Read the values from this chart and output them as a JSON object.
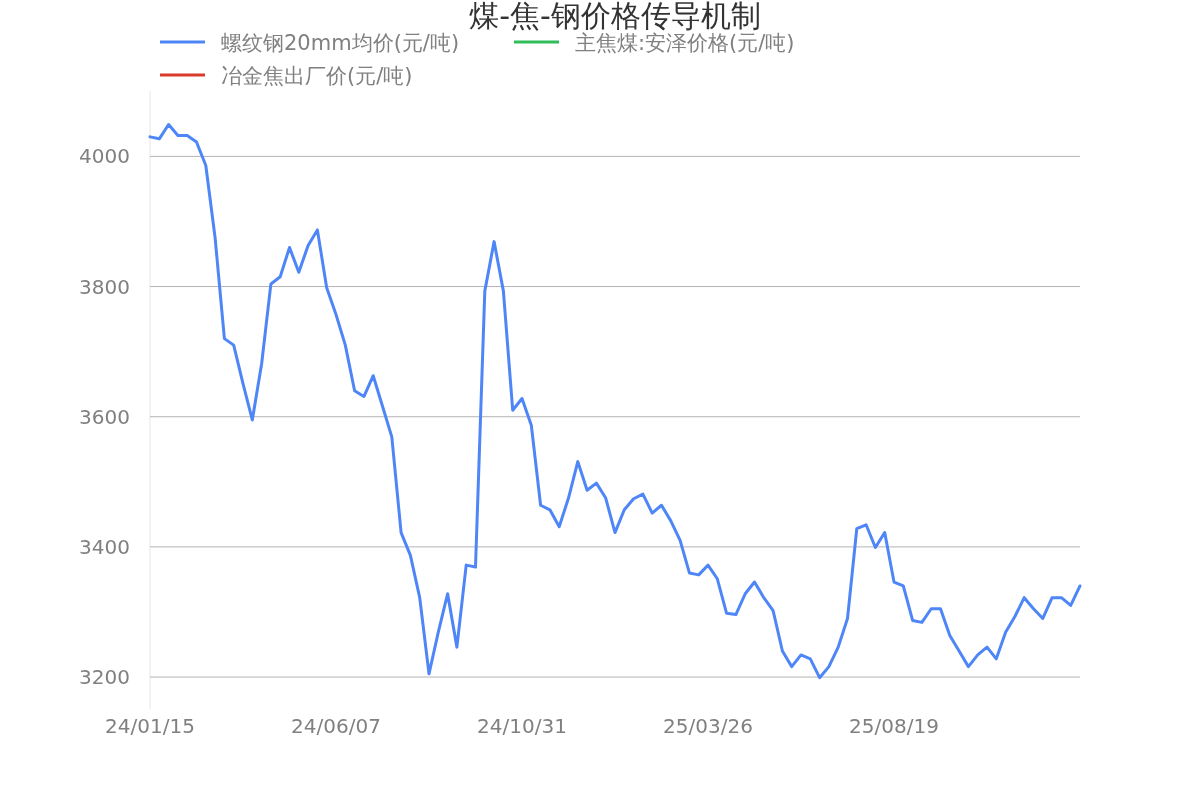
{
  "chart_data": {
    "type": "line",
    "title": "煤-焦-钢价格传导机制",
    "categories": [
      "24/01/15",
      null,
      null,
      null,
      null,
      null,
      null,
      null,
      null,
      null,
      null,
      null,
      null,
      null,
      null,
      null,
      null,
      null,
      null,
      null,
      "24/06/07",
      null,
      null,
      null,
      null,
      null,
      null,
      null,
      null,
      null,
      null,
      null,
      null,
      null,
      null,
      null,
      null,
      null,
      null,
      null,
      "24/10/31",
      null,
      null,
      null,
      null,
      null,
      null,
      null,
      null,
      null,
      null,
      null,
      null,
      null,
      null,
      null,
      null,
      null,
      null,
      null,
      "25/03/26",
      null,
      null,
      null,
      null,
      null,
      null,
      null,
      null,
      null,
      null,
      null,
      null,
      null,
      null,
      null,
      null,
      null,
      null,
      null,
      "25/08/19",
      null,
      null,
      null,
      null,
      null,
      null,
      null,
      null,
      null,
      null,
      null,
      null,
      null,
      null,
      null,
      null,
      null,
      null,
      null,
      null
    ],
    "series": [
      {
        "name": "螺纹钢20mm均价(元/吨)",
        "color": "#4e86f7",
        "values": [
          4030,
          4027,
          4049,
          4032,
          4032,
          4022,
          3986,
          3875,
          3720,
          3710,
          3651,
          3595,
          3681,
          3804,
          3815,
          3860,
          3822,
          3863,
          3887,
          3798,
          3757,
          3710,
          3640,
          3631,
          3663,
          3616,
          3569,
          3422,
          3387,
          3322,
          3205,
          3269,
          3328,
          3246,
          3372,
          3369,
          3793,
          3869,
          3793,
          3610,
          3628,
          3587,
          3464,
          3457,
          3431,
          3475,
          3531,
          3487,
          3498,
          3475,
          3422,
          3457,
          3474,
          3481,
          3452,
          3464,
          3440,
          3410,
          3360,
          3357,
          3372,
          3351,
          3298,
          3296,
          3328,
          3346,
          3322,
          3302,
          3240,
          3216,
          3234,
          3228,
          3199,
          3216,
          3246,
          3290,
          3428,
          3434,
          3399,
          3422,
          3346,
          3340,
          3287,
          3284,
          3305,
          3305,
          3264,
          3240,
          3216,
          3234,
          3246,
          3228,
          3269,
          3293,
          3322,
          3305,
          3290,
          3322,
          3322,
          3310,
          3340
        ]
      },
      {
        "name": "主焦煤:安泽价格(元/吨)",
        "color": "#2ebd5a",
        "values": [
          null,
          null,
          null,
          null,
          null,
          null,
          null,
          null,
          null,
          null,
          null,
          null,
          null,
          null,
          null,
          null,
          null,
          null,
          null,
          null,
          null,
          null,
          null,
          null,
          null,
          null,
          null,
          null,
          null,
          null,
          null,
          null,
          null,
          null,
          null,
          null,
          null,
          null,
          null,
          null,
          null,
          null,
          null,
          null,
          null,
          null,
          null,
          null,
          null,
          null,
          null,
          null,
          null,
          null,
          null,
          null,
          null,
          null,
          null,
          null,
          null,
          null,
          null,
          null,
          null,
          null,
          null,
          null,
          null,
          null,
          null,
          null,
          null,
          null,
          null,
          null,
          null,
          null,
          null,
          null,
          null,
          null,
          null,
          null,
          null,
          null,
          null,
          null,
          null,
          null,
          null,
          null,
          null,
          null,
          null,
          null,
          null,
          null,
          null,
          null,
          null
        ]
      },
      {
        "name": "冶金焦出厂价(元/吨)",
        "color": "#d93a2b",
        "values": [
          null,
          null,
          null,
          null,
          null,
          null,
          null,
          null,
          null,
          null,
          null,
          null,
          null,
          null,
          null,
          null,
          null,
          null,
          null,
          null,
          null,
          null,
          null,
          null,
          null,
          null,
          null,
          null,
          null,
          null,
          null,
          null,
          null,
          null,
          null,
          null,
          null,
          null,
          null,
          null,
          null,
          null,
          null,
          null,
          null,
          null,
          null,
          null,
          null,
          null,
          null,
          null,
          null,
          null,
          null,
          null,
          null,
          null,
          null,
          null,
          null,
          null,
          null,
          null,
          null,
          null,
          null,
          null,
          null,
          null,
          null,
          null,
          null,
          null,
          null,
          null,
          null,
          null,
          null,
          null,
          null,
          null,
          null,
          null,
          null,
          null,
          null,
          null,
          null,
          null,
          null,
          null,
          null,
          null,
          null,
          null,
          null,
          null,
          null,
          null,
          null
        ]
      }
    ],
    "ylim": [
      3150,
      4100
    ],
    "yticks": [
      3200,
      3400,
      3600,
      3800,
      4000
    ],
    "grid": "y",
    "legend": "top left",
    "marker": "none",
    "line_style": "solid"
  }
}
